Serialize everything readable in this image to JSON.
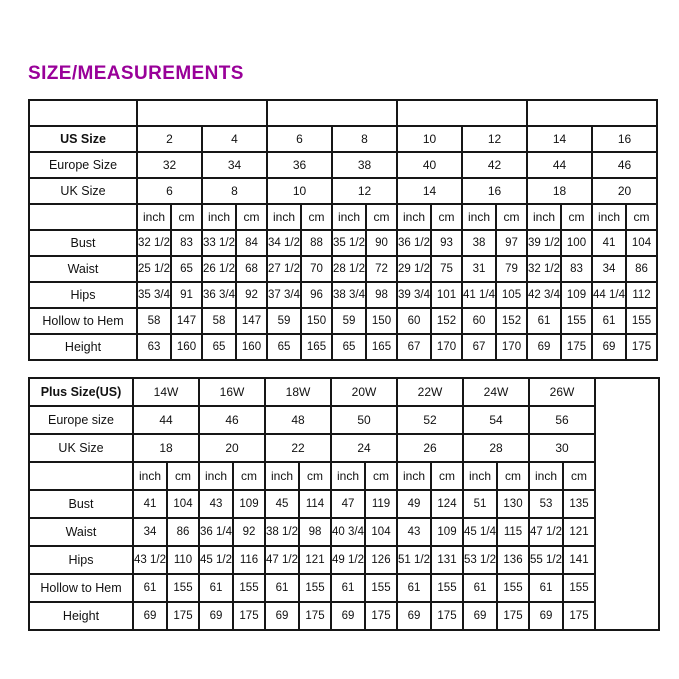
{
  "title": "SIZE/MEASUREMENTS",
  "colors": {
    "title": "#990099",
    "border": "#161616",
    "background": "#ffffff"
  },
  "units": {
    "inch": "inch",
    "cm": "cm"
  },
  "regular_table": {
    "size_rows": [
      {
        "label": "US Size",
        "bold": true,
        "values": [
          "2",
          "4",
          "6",
          "8",
          "10",
          "12",
          "14",
          "16"
        ]
      },
      {
        "label": "Europe Size",
        "bold": false,
        "values": [
          "32",
          "34",
          "36",
          "38",
          "40",
          "42",
          "44",
          "46"
        ]
      },
      {
        "label": "UK Size",
        "bold": false,
        "values": [
          "6",
          "8",
          "10",
          "12",
          "14",
          "16",
          "18",
          "20"
        ]
      }
    ],
    "measurement_rows": [
      {
        "label": "Bust",
        "values": [
          [
            "32 1/2",
            "83"
          ],
          [
            "33 1/2",
            "84"
          ],
          [
            "34 1/2",
            "88"
          ],
          [
            "35 1/2",
            "90"
          ],
          [
            "36 1/2",
            "93"
          ],
          [
            "38",
            "97"
          ],
          [
            "39 1/2",
            "100"
          ],
          [
            "41",
            "104"
          ]
        ]
      },
      {
        "label": "Waist",
        "values": [
          [
            "25 1/2",
            "65"
          ],
          [
            "26 1/2",
            "68"
          ],
          [
            "27 1/2",
            "70"
          ],
          [
            "28 1/2",
            "72"
          ],
          [
            "29 1/2",
            "75"
          ],
          [
            "31",
            "79"
          ],
          [
            "32 1/2",
            "83"
          ],
          [
            "34",
            "86"
          ]
        ]
      },
      {
        "label": "Hips",
        "values": [
          [
            "35 3/4",
            "91"
          ],
          [
            "36 3/4",
            "92"
          ],
          [
            "37 3/4",
            "96"
          ],
          [
            "38 3/4",
            "98"
          ],
          [
            "39 3/4",
            "101"
          ],
          [
            "41 1/4",
            "105"
          ],
          [
            "42 3/4",
            "109"
          ],
          [
            "44 1/4",
            "112"
          ]
        ]
      },
      {
        "label": "Hollow to Hem",
        "values": [
          [
            "58",
            "147"
          ],
          [
            "58",
            "147"
          ],
          [
            "59",
            "150"
          ],
          [
            "59",
            "150"
          ],
          [
            "60",
            "152"
          ],
          [
            "60",
            "152"
          ],
          [
            "61",
            "155"
          ],
          [
            "61",
            "155"
          ]
        ]
      },
      {
        "label": "Height",
        "values": [
          [
            "63",
            "160"
          ],
          [
            "65",
            "160"
          ],
          [
            "65",
            "165"
          ],
          [
            "65",
            "165"
          ],
          [
            "67",
            "170"
          ],
          [
            "67",
            "170"
          ],
          [
            "69",
            "175"
          ],
          [
            "69",
            "175"
          ]
        ]
      }
    ]
  },
  "plus_table": {
    "size_rows": [
      {
        "label": "Plus Size(US)",
        "bold": true,
        "values": [
          "14W",
          "16W",
          "18W",
          "20W",
          "22W",
          "24W",
          "26W"
        ]
      },
      {
        "label": "Europe size",
        "bold": false,
        "values": [
          "44",
          "46",
          "48",
          "50",
          "52",
          "54",
          "56"
        ]
      },
      {
        "label": "UK Size",
        "bold": false,
        "values": [
          "18",
          "20",
          "22",
          "24",
          "26",
          "28",
          "30"
        ]
      }
    ],
    "measurement_rows": [
      {
        "label": "Bust",
        "values": [
          [
            "41",
            "104"
          ],
          [
            "43",
            "109"
          ],
          [
            "45",
            "114"
          ],
          [
            "47",
            "119"
          ],
          [
            "49",
            "124"
          ],
          [
            "51",
            "130"
          ],
          [
            "53",
            "135"
          ]
        ]
      },
      {
        "label": "Waist",
        "values": [
          [
            "34",
            "86"
          ],
          [
            "36 1/4",
            "92"
          ],
          [
            "38 1/2",
            "98"
          ],
          [
            "40 3/4",
            "104"
          ],
          [
            "43",
            "109"
          ],
          [
            "45 1/4",
            "115"
          ],
          [
            "47 1/2",
            "121"
          ]
        ]
      },
      {
        "label": "Hips",
        "values": [
          [
            "43 1/2",
            "110"
          ],
          [
            "45 1/2",
            "116"
          ],
          [
            "47 1/2",
            "121"
          ],
          [
            "49 1/2",
            "126"
          ],
          [
            "51 1/2",
            "131"
          ],
          [
            "53 1/2",
            "136"
          ],
          [
            "55 1/2",
            "141"
          ]
        ]
      },
      {
        "label": "Hollow to Hem",
        "values": [
          [
            "61",
            "155"
          ],
          [
            "61",
            "155"
          ],
          [
            "61",
            "155"
          ],
          [
            "61",
            "155"
          ],
          [
            "61",
            "155"
          ],
          [
            "61",
            "155"
          ],
          [
            "61",
            "155"
          ]
        ]
      },
      {
        "label": "Height",
        "values": [
          [
            "69",
            "175"
          ],
          [
            "69",
            "175"
          ],
          [
            "69",
            "175"
          ],
          [
            "69",
            "175"
          ],
          [
            "69",
            "175"
          ],
          [
            "69",
            "175"
          ],
          [
            "69",
            "175"
          ]
        ]
      }
    ]
  }
}
